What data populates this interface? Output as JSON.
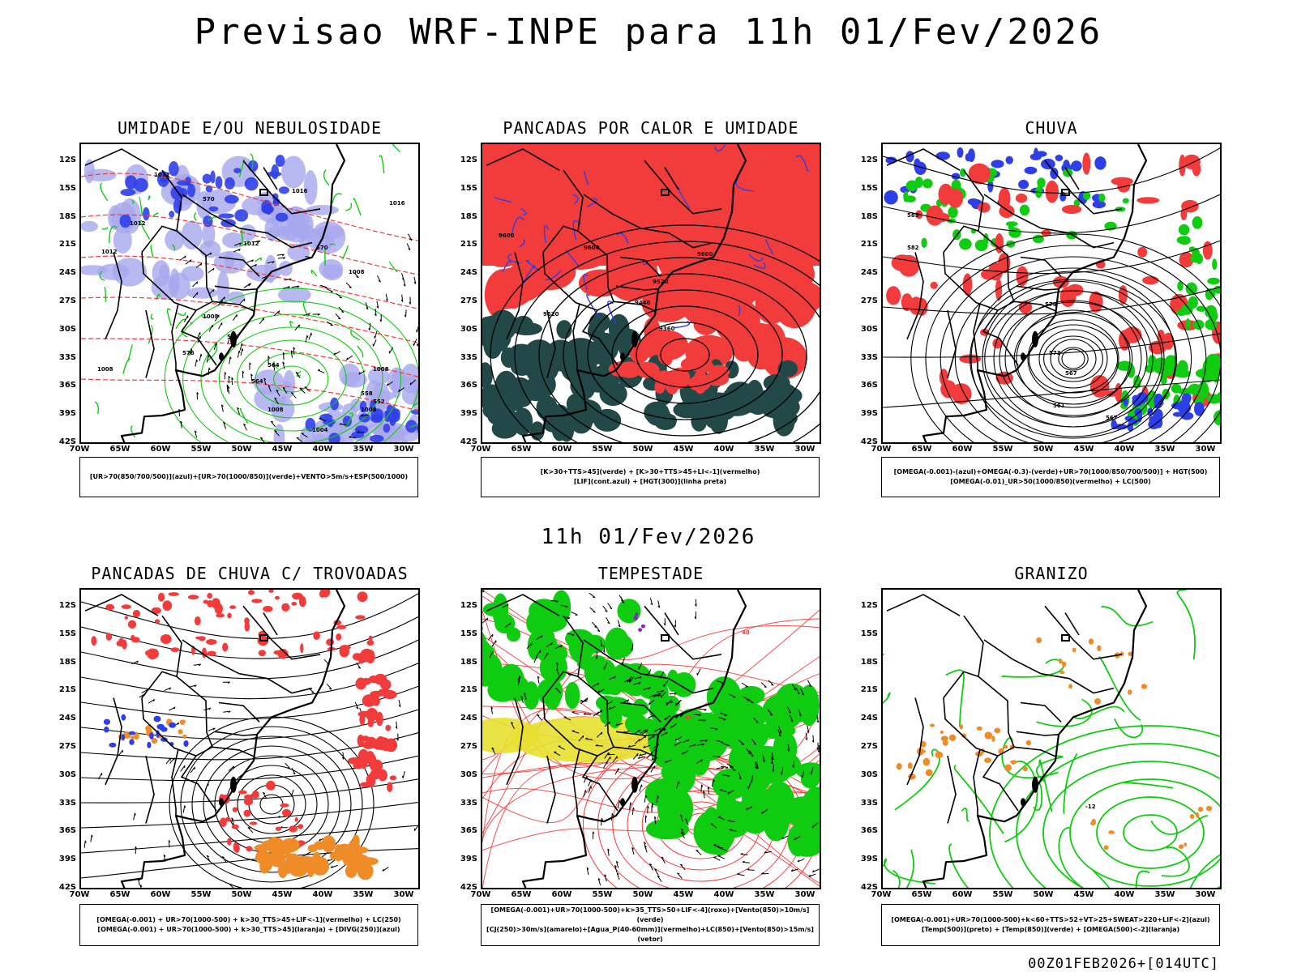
{
  "title": "Previsao WRF-INPE  para 11h 01/Fev/2026",
  "mid_date": "11h 01/Fev/2026",
  "run_stamp": "00Z01FEB2026+[014UTC]",
  "axes": {
    "lat_labels": [
      "12S",
      "15S",
      "18S",
      "21S",
      "24S",
      "27S",
      "30S",
      "33S",
      "36S",
      "39S",
      "42S"
    ],
    "lon_labels": [
      "70W",
      "65W",
      "60W",
      "55W",
      "50W",
      "45W",
      "40W",
      "35W",
      "30W"
    ]
  },
  "colors": {
    "blue": "#2f3fe8",
    "lightblue": "#a8a8ee",
    "green": "#10cc10",
    "red": "#f23b3b",
    "orange": "#f08c28",
    "yellow": "#e8e030",
    "darkteal": "#224848",
    "purple": "#9020c0"
  },
  "panels": [
    {
      "title": "UMIDADE E/OU NEBULOSIDADE",
      "legend": [
        "[UR>70(850/700/500)](azul)+[UR>70(1000/850)](verde)+VENTO>5m/s+ESP(500/1000)"
      ],
      "contour_labels": [
        "1012",
        "1012",
        "1008",
        "1008",
        "1008",
        "1008",
        "1008",
        "1004",
        "1008",
        "1012",
        "1012",
        "1016",
        "1016",
        "570",
        "576",
        "576",
        "570",
        "564",
        "564",
        "558",
        "552"
      ]
    },
    {
      "title": "PANCADAS POR CALOR E UMIDADE",
      "legend": [
        "[K>30+TTS>45](verde) + [K>30+TTS>45+LI<-1](vermelho)",
        "[LIF](cont.azul) + [HGT(300)](linha preta)"
      ],
      "contour_labels": [
        "9600",
        "9600",
        "9600",
        "9520",
        "9520",
        "9440",
        "9360"
      ]
    },
    {
      "title": "CHUVA",
      "legend": [
        "[OMEGA(-0.001)-(azul)+OMEGA(-0.3)-(verde)+UR>70(1000/850/700/500)] + HGT(500)",
        "[OMEGA(-0.01)_UR>50(1000/850)(vermelho) + LC(500)"
      ],
      "contour_labels": [
        "585",
        "582",
        "579",
        "573",
        "567",
        "561",
        "567"
      ]
    },
    {
      "title": "PANCADAS DE CHUVA C/ TROVOADAS",
      "legend": [
        "[OMEGA(-0.001) + UR>70(1000-500) + k>30_TTS>45+LIF<-1](vermelho) + LC(250)",
        "[OMEGA(-0.001) + UR>70(1000-500) + k>30_TTS>45](laranja) + [DIVG(250)](azul)"
      ],
      "contour_labels": []
    },
    {
      "title": "TEMPESTADE",
      "legend": [
        "[OMEGA(-0.001)+UR>70(1000-500)+k>35_TTS>50+LIF<-4](roxo)+[Vento(850)>10m/s](verde)",
        "[CJ(250)>30m/s](amarelo)+[Agua_P(40-60mm)](vermelho)+LC(850)+[Vento(850)>15m/s](vetor)"
      ],
      "contour_labels": [
        "40",
        "40"
      ]
    },
    {
      "title": "GRANIZO",
      "legend": [
        "[OMEGA(-0.001)+UR>70(1000-500)+k<60+TTS>52+VT>25+SWEAT>220+LIF<-2](azul)",
        "[Temp(500)](preto) + [Temp(850)](verde) + [OMEGA(500)<-2](laranja)"
      ],
      "contour_labels": [
        "-12"
      ]
    }
  ]
}
